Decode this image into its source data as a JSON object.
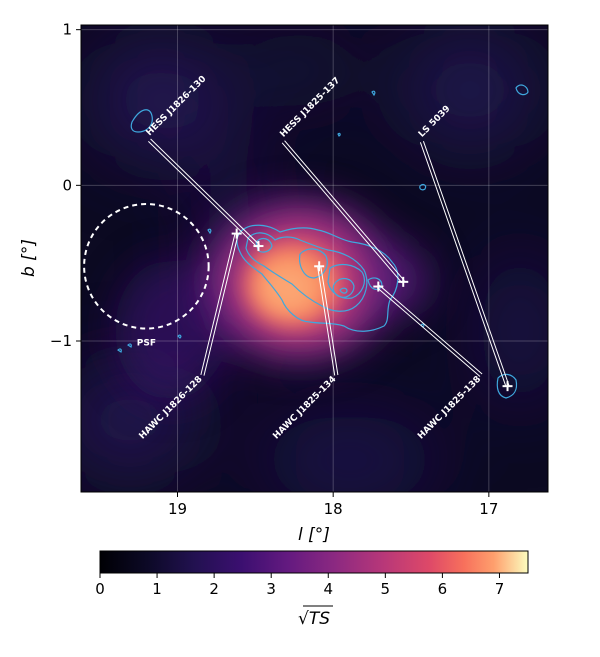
{
  "chart_data": {
    "type": "heatmap",
    "title": "",
    "xlabel": "l [°]",
    "ylabel": "b [°]",
    "xlim": [
      19.62,
      16.62
    ],
    "ylim": [
      -1.97,
      1.03
    ],
    "xticks": [
      {
        "value": 19,
        "label": "19"
      },
      {
        "value": 18,
        "label": "18"
      },
      {
        "value": 17,
        "label": "17"
      }
    ],
    "yticks": [
      {
        "value": 1,
        "label": "1"
      },
      {
        "value": 0,
        "label": "0"
      },
      {
        "value": -1,
        "label": "−1"
      }
    ],
    "grid": true,
    "colorbar": {
      "label": "√TS",
      "range": [
        0,
        7.5
      ],
      "colormap": "magma",
      "ticks": [
        {
          "value": 0,
          "label": "0"
        },
        {
          "value": 1,
          "label": "1"
        },
        {
          "value": 2,
          "label": "2"
        },
        {
          "value": 3,
          "label": "3"
        },
        {
          "value": 4,
          "label": "4"
        },
        {
          "value": 5,
          "label": "5"
        },
        {
          "value": 6,
          "label": "6"
        },
        {
          "value": 7,
          "label": "7"
        }
      ]
    },
    "peak": {
      "l": 18.2,
      "b": -0.68,
      "sqrt_ts": 7.3
    },
    "psf": {
      "label": "PSF",
      "l": 19.2,
      "b": -0.52,
      "radius_deg": 0.4
    },
    "sources": [
      {
        "name": "HESS J1826-130",
        "l": 18.48,
        "b": -0.39,
        "label_l": 19.18,
        "label_b": 0.29
      },
      {
        "name": "HESS J1825-137",
        "l": 17.55,
        "b": -0.62,
        "label_l": 18.32,
        "label_b": 0.28
      },
      {
        "name": "LS 5039",
        "l": 16.88,
        "b": -1.29,
        "label_l": 17.43,
        "label_b": 0.28
      },
      {
        "name": "HAWC J1826-128",
        "l": 18.62,
        "b": -0.31,
        "label_l": 18.84,
        "label_b": -1.22
      },
      {
        "name": "HAWC J1825-134",
        "l": 18.09,
        "b": -0.52,
        "label_l": 17.98,
        "label_b": -1.22
      },
      {
        "name": "HAWC J1825-138",
        "l": 17.71,
        "b": -0.65,
        "label_l": 17.05,
        "label_b": -1.22
      }
    ]
  }
}
